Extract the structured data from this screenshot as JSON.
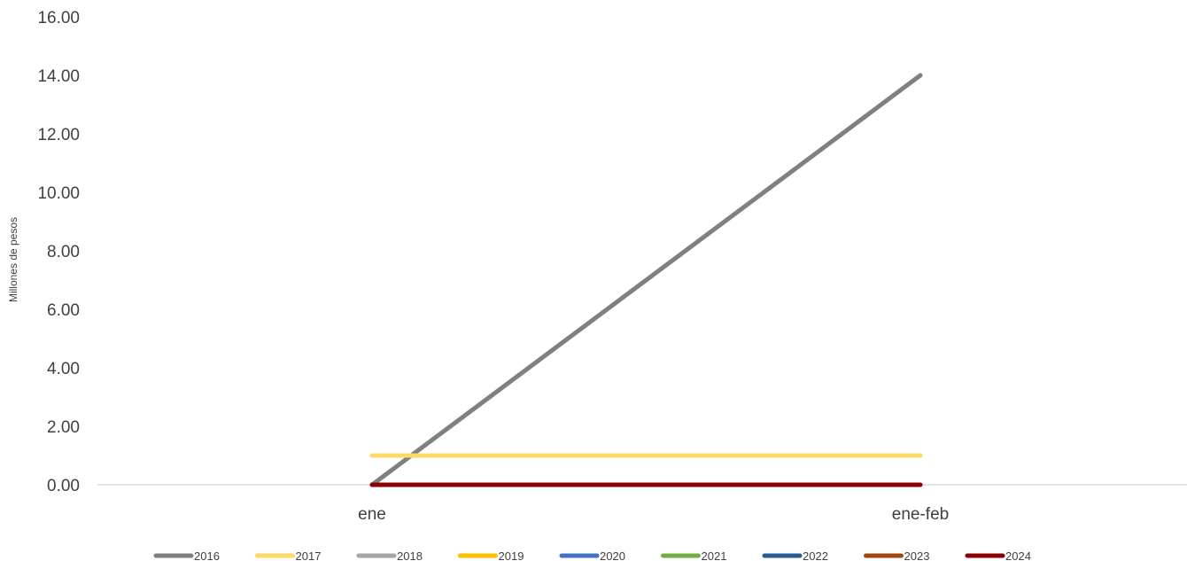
{
  "chart_data": {
    "type": "line",
    "title": "",
    "xlabel": "",
    "ylabel": "Millones de pesos",
    "categories": [
      "ene",
      "ene-feb"
    ],
    "ylim": [
      0,
      16
    ],
    "y_ticks": [
      "0.00",
      "2.00",
      "4.00",
      "6.00",
      "8.00",
      "10.00",
      "12.00",
      "14.00",
      "16.00"
    ],
    "grid": false,
    "legend_position": "bottom",
    "series": [
      {
        "name": "2016",
        "color": "#808080",
        "values": [
          0.0,
          14.0
        ]
      },
      {
        "name": "2017",
        "color": "#FFD966",
        "values": [
          1.0,
          1.0
        ]
      },
      {
        "name": "2018",
        "color": "#A5A5A5",
        "values": [
          null,
          null
        ]
      },
      {
        "name": "2019",
        "color": "#FFC000",
        "values": [
          null,
          null
        ]
      },
      {
        "name": "2020",
        "color": "#4472C4",
        "values": [
          null,
          null
        ]
      },
      {
        "name": "2021",
        "color": "#70AD47",
        "values": [
          null,
          null
        ]
      },
      {
        "name": "2022",
        "color": "#255E91",
        "values": [
          null,
          null
        ]
      },
      {
        "name": "2023",
        "color": "#9E480E",
        "values": [
          null,
          null
        ]
      },
      {
        "name": "2024",
        "color": "#8B0000",
        "values": [
          0.0,
          0.0
        ]
      }
    ]
  }
}
